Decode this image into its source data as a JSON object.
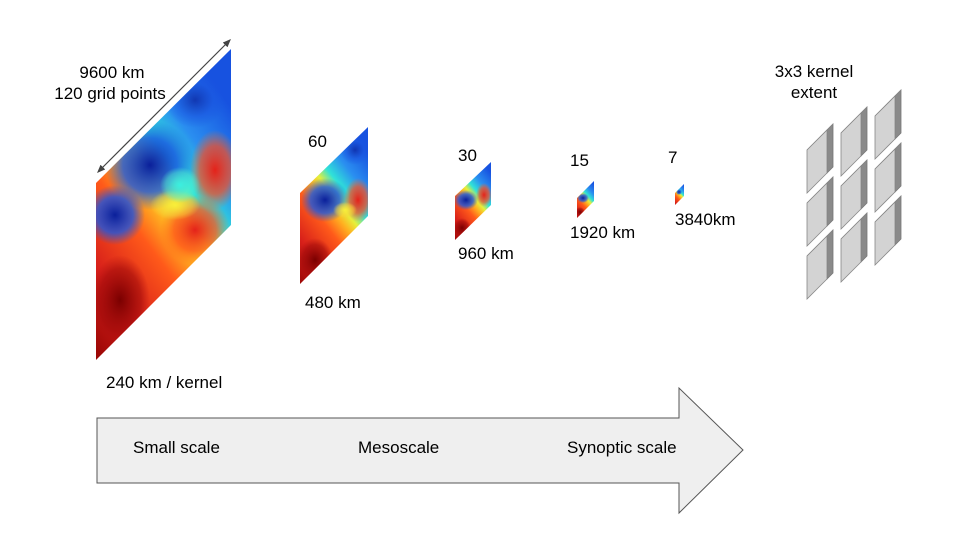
{
  "panels": [
    {
      "top_label": "9600 km",
      "top_label_2": "120 grid points",
      "bottom_label": "240 km / kernel"
    },
    {
      "top_label": "60",
      "bottom_label": "480 km"
    },
    {
      "top_label": "30",
      "bottom_label": "960 km"
    },
    {
      "top_label": "15",
      "bottom_label": "1920 km"
    },
    {
      "top_label": "7",
      "bottom_label": "3840km"
    }
  ],
  "kernel": {
    "label_line1": "3x3 kernel",
    "label_line2": "extent"
  },
  "arrow": {
    "labels": [
      "Small scale",
      "Mesoscale",
      "Synoptic scale"
    ]
  },
  "colors": {
    "red_dark": "#8b0000",
    "red": "#e8231a",
    "orange": "#ff8a1e",
    "yellow": "#f3e92e",
    "cyan": "#22dde7",
    "blue": "#1e74ea",
    "navy": "#0a1f9a",
    "arrow_fill": "#efefef",
    "arrow_stroke": "#555555",
    "kernel_face": "#d3d3d3",
    "kernel_side": "#8a8a8a"
  }
}
